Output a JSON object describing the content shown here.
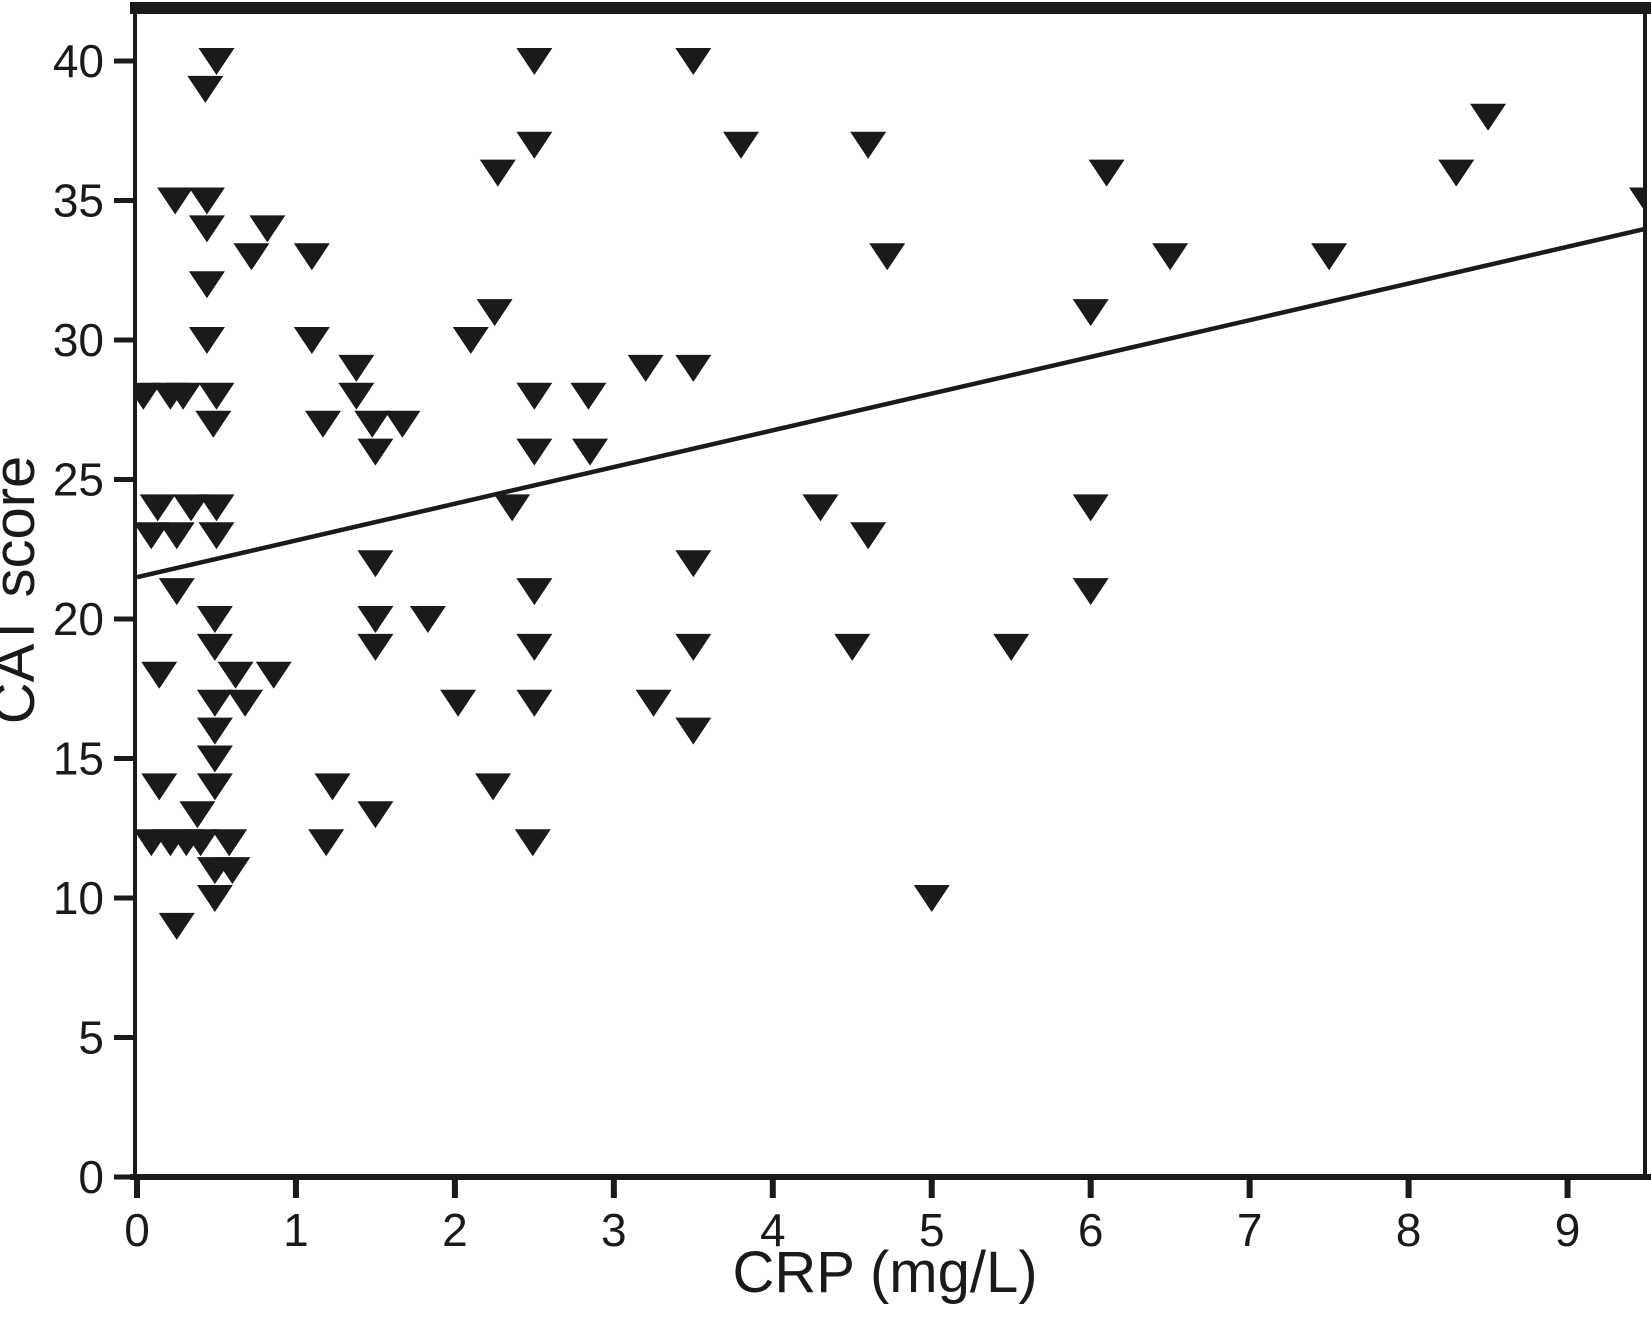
{
  "figure": {
    "background": "#ffffff",
    "ink_color": "#1a1a1a"
  },
  "chart_data": {
    "type": "scatter",
    "title": "",
    "xlabel": "CRP (mg/L)",
    "ylabel": "CAT score",
    "xlim": [
      0,
      9.5
    ],
    "ylim": [
      0,
      41.9
    ],
    "x_ticks": [
      0,
      1,
      2,
      3,
      4,
      5,
      6,
      7,
      8,
      9
    ],
    "y_ticks": [
      0,
      5,
      10,
      15,
      20,
      25,
      30,
      35,
      40
    ],
    "grid": false,
    "legend": "none",
    "marker": "filled-down-triangle",
    "marker_color": "#1a1a1a",
    "points": [
      [
        0.5,
        40
      ],
      [
        2.5,
        40
      ],
      [
        3.5,
        40
      ],
      [
        0.43,
        39
      ],
      [
        8.5,
        38
      ],
      [
        2.5,
        37
      ],
      [
        3.8,
        37
      ],
      [
        4.6,
        37
      ],
      [
        2.27,
        36
      ],
      [
        6.1,
        36
      ],
      [
        8.3,
        36
      ],
      [
        0.24,
        35
      ],
      [
        0.44,
        35
      ],
      [
        9.5,
        35
      ],
      [
        0.44,
        34
      ],
      [
        0.82,
        34
      ],
      [
        0.72,
        33
      ],
      [
        1.1,
        33
      ],
      [
        4.72,
        33
      ],
      [
        6.5,
        33
      ],
      [
        7.5,
        33
      ],
      [
        0.44,
        32
      ],
      [
        2.25,
        31
      ],
      [
        6.0,
        31
      ],
      [
        0.44,
        30
      ],
      [
        1.1,
        30
      ],
      [
        2.1,
        30
      ],
      [
        1.38,
        29
      ],
      [
        3.2,
        29
      ],
      [
        3.5,
        29
      ],
      [
        0.04,
        28
      ],
      [
        0.21,
        28
      ],
      [
        0.29,
        28
      ],
      [
        0.5,
        28
      ],
      [
        1.38,
        28
      ],
      [
        2.5,
        28
      ],
      [
        2.84,
        28
      ],
      [
        0.48,
        27
      ],
      [
        1.17,
        27
      ],
      [
        1.48,
        27
      ],
      [
        1.67,
        27
      ],
      [
        1.5,
        26
      ],
      [
        2.5,
        26
      ],
      [
        2.85,
        26
      ],
      [
        0.13,
        24
      ],
      [
        0.34,
        24
      ],
      [
        0.5,
        24
      ],
      [
        2.36,
        24
      ],
      [
        4.3,
        24
      ],
      [
        6.0,
        24
      ],
      [
        0.09,
        23
      ],
      [
        0.25,
        23
      ],
      [
        0.5,
        23
      ],
      [
        4.6,
        23
      ],
      [
        1.5,
        22
      ],
      [
        3.5,
        22
      ],
      [
        0.25,
        21
      ],
      [
        2.5,
        21
      ],
      [
        6.0,
        21
      ],
      [
        0.49,
        20
      ],
      [
        1.5,
        20
      ],
      [
        1.83,
        20
      ],
      [
        0.49,
        19
      ],
      [
        1.5,
        19
      ],
      [
        2.5,
        19
      ],
      [
        3.5,
        19
      ],
      [
        4.5,
        19
      ],
      [
        5.5,
        19
      ],
      [
        0.14,
        18
      ],
      [
        0.62,
        18
      ],
      [
        0.86,
        18
      ],
      [
        0.49,
        17
      ],
      [
        0.68,
        17
      ],
      [
        2.02,
        17
      ],
      [
        2.5,
        17
      ],
      [
        3.25,
        17
      ],
      [
        0.49,
        16
      ],
      [
        3.5,
        16
      ],
      [
        0.49,
        15
      ],
      [
        0.14,
        14
      ],
      [
        0.49,
        14
      ],
      [
        1.23,
        14
      ],
      [
        2.24,
        14
      ],
      [
        0.38,
        13
      ],
      [
        1.5,
        13
      ],
      [
        0.09,
        12
      ],
      [
        0.21,
        12
      ],
      [
        0.31,
        12
      ],
      [
        0.4,
        12
      ],
      [
        0.58,
        12
      ],
      [
        1.19,
        12
      ],
      [
        2.49,
        12
      ],
      [
        0.49,
        11
      ],
      [
        0.6,
        11
      ],
      [
        0.49,
        10
      ],
      [
        5.0,
        10
      ],
      [
        0.25,
        9
      ]
    ],
    "trend_line": {
      "x1": 0,
      "y1": 21.5,
      "x2": 9.5,
      "y2": 34.0
    }
  }
}
